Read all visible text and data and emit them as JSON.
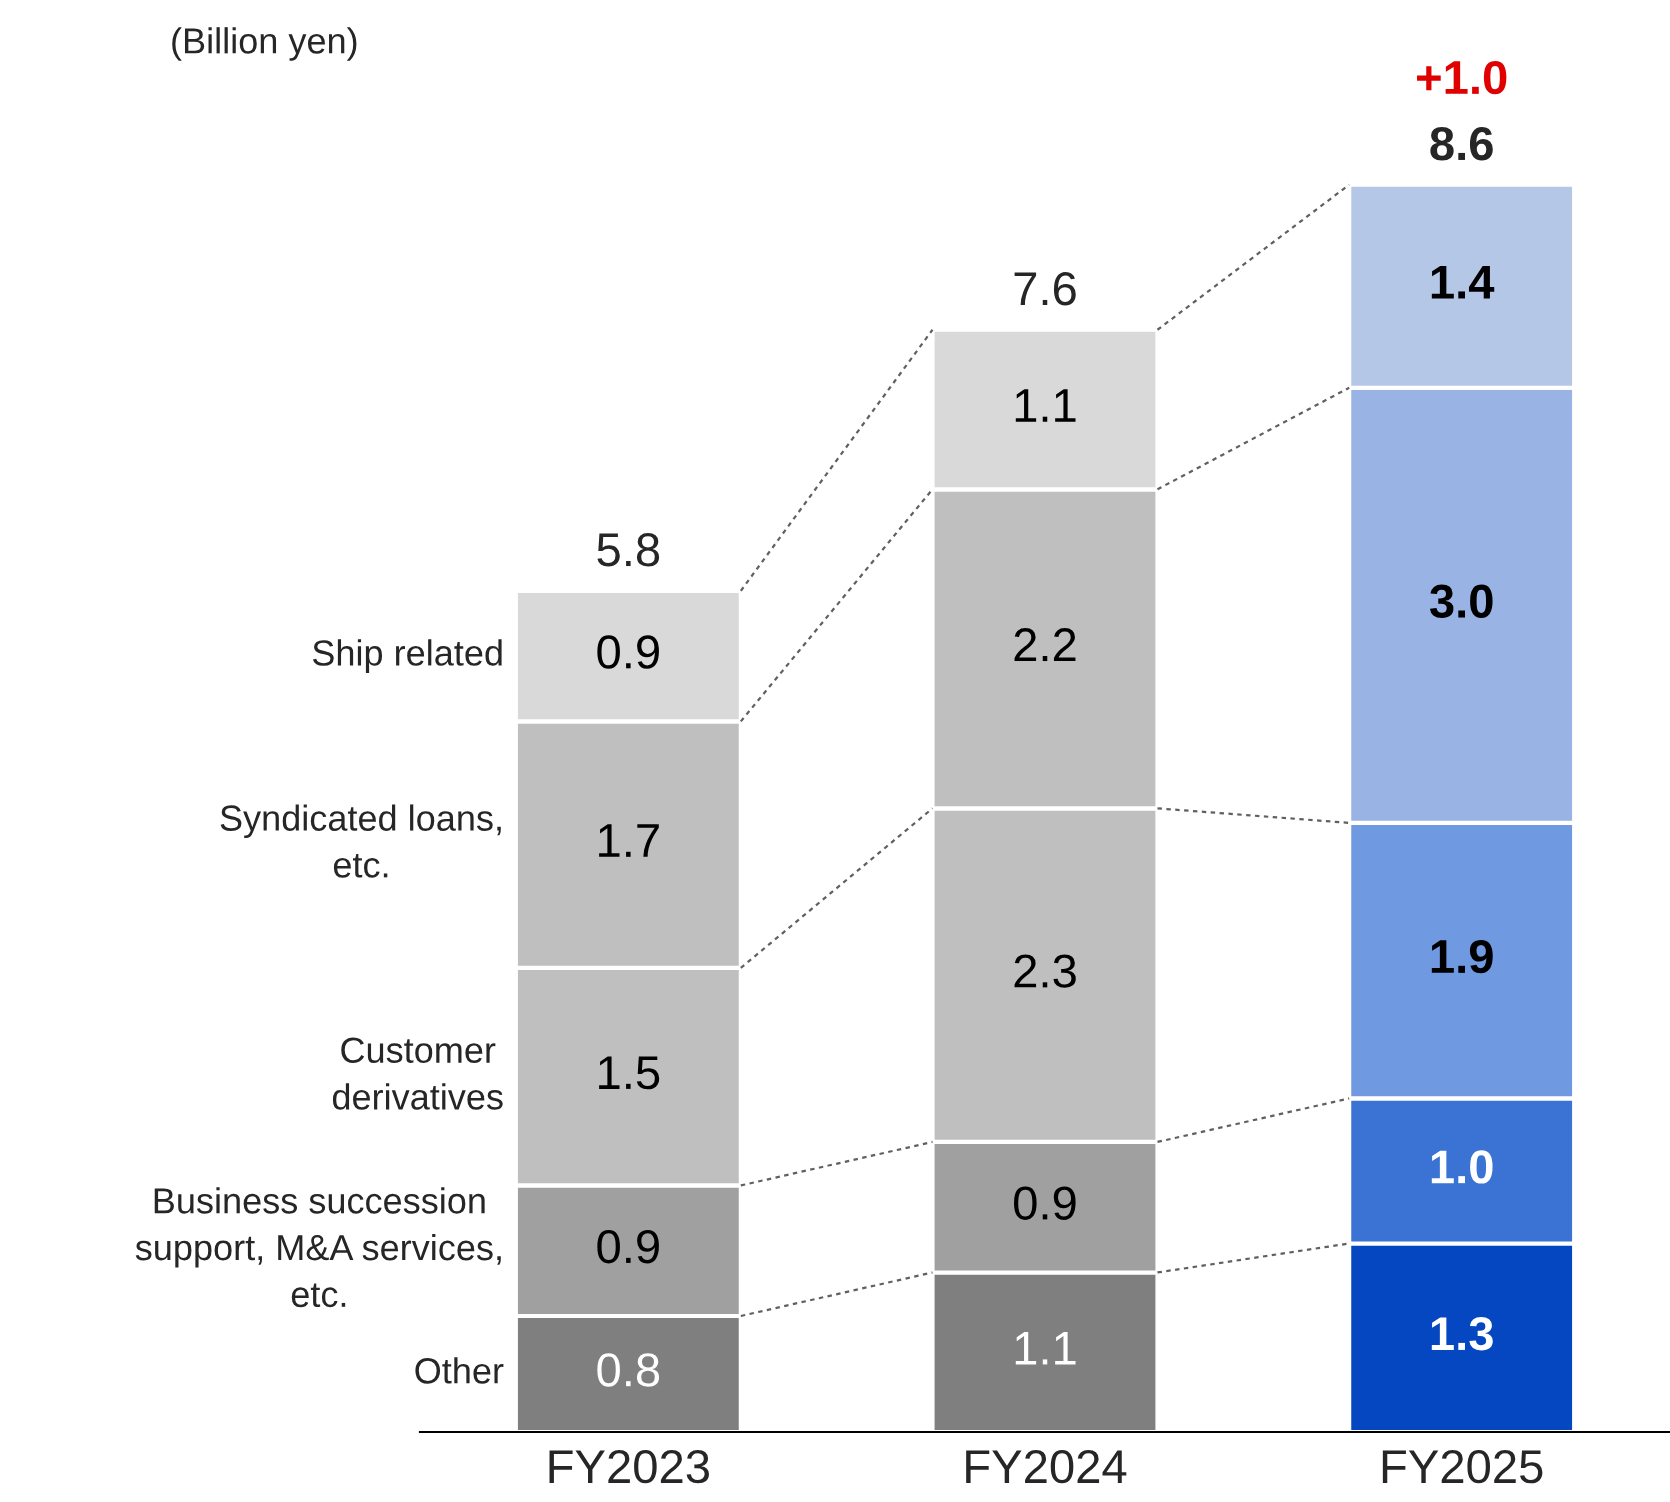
{
  "chart_data": {
    "type": "bar",
    "stacked": true,
    "categories": [
      "FY2023",
      "FY2024",
      "FY2025"
    ],
    "series": [
      {
        "name": "Other",
        "colors": [
          "#7f7f7f",
          "#7f7f7f",
          "#0547c0"
        ],
        "values": [
          0.8,
          1.1,
          1.3
        ],
        "value_labels": [
          "0.8",
          "1.1",
          "1.3"
        ]
      },
      {
        "name": "Business succession\nsupport, M&A services,\netc.",
        "colors": [
          "#a0a0a0",
          "#a0a0a0",
          "#3a73d3"
        ],
        "values": [
          0.9,
          0.9,
          1.0
        ],
        "value_labels": [
          "0.9",
          "0.9",
          "1.0"
        ]
      },
      {
        "name": "Customer\nderivatives",
        "colors": [
          "#bfbfbf",
          "#bfbfbf",
          "#6f99e0"
        ],
        "values": [
          1.5,
          2.3,
          1.9
        ],
        "value_labels": [
          "1.5",
          "2.3",
          "1.9"
        ]
      },
      {
        "name": "Syndicated loans,\netc.",
        "colors": [
          "#bfbfbf",
          "#bfbfbf",
          "#98b3e4"
        ],
        "values": [
          1.7,
          2.2,
          3.0
        ],
        "value_labels": [
          "1.7",
          "2.2",
          "3.0"
        ]
      },
      {
        "name": "Ship related",
        "colors": [
          "#d9d9d9",
          "#d9d9d9",
          "#b4c7e7"
        ],
        "values": [
          0.9,
          1.1,
          1.4
        ],
        "value_labels": [
          "0.9",
          "1.1",
          "1.4"
        ]
      }
    ],
    "totals": [
      "5.8",
      "7.6",
      "8.6"
    ],
    "annotations": [
      "(Billion yen)",
      {
        "text": "+1.0",
        "x": "FY2025",
        "y": 8.6
      }
    ],
    "legend": false
  }
}
